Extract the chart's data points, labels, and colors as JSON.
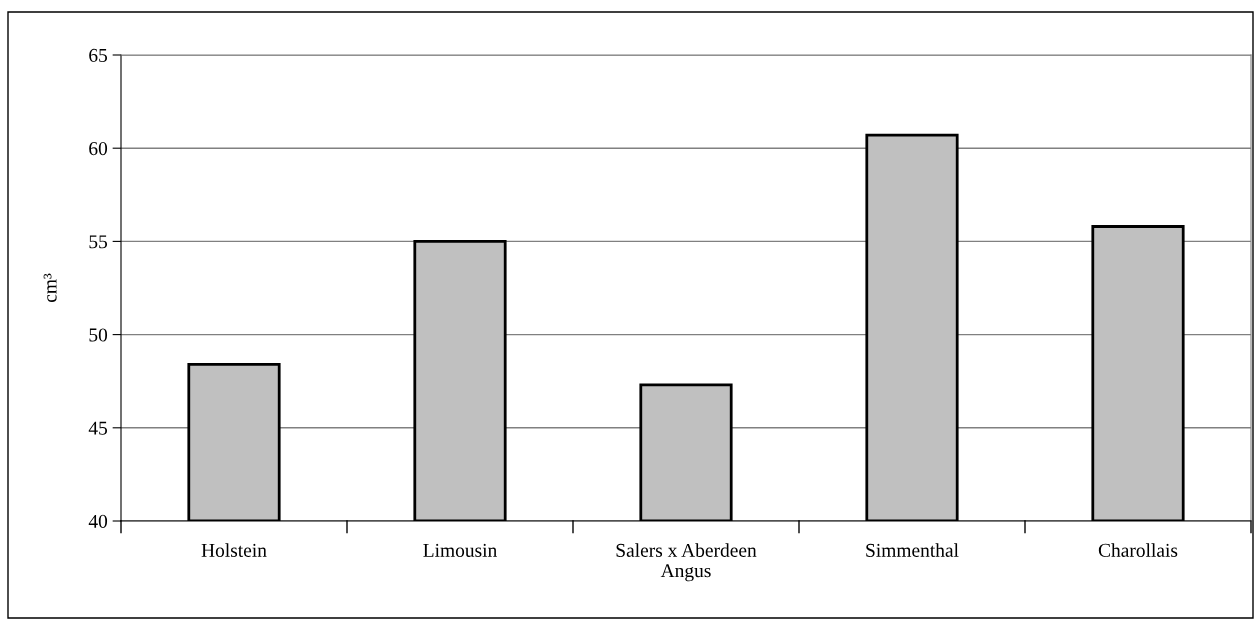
{
  "chart_data": {
    "type": "bar",
    "ylabel": "cm³",
    "categories": [
      "Holstein",
      "Limousin",
      "Salers x Aberdeen\nAngus",
      "Simmenthal",
      "Charollais"
    ],
    "values": [
      48.4,
      55.0,
      47.3,
      60.7,
      55.8
    ],
    "color": "#c0c0c0",
    "ylim": [
      40,
      65
    ],
    "yticks": [
      40,
      45,
      50,
      55,
      60,
      65
    ],
    "grid": "y"
  }
}
